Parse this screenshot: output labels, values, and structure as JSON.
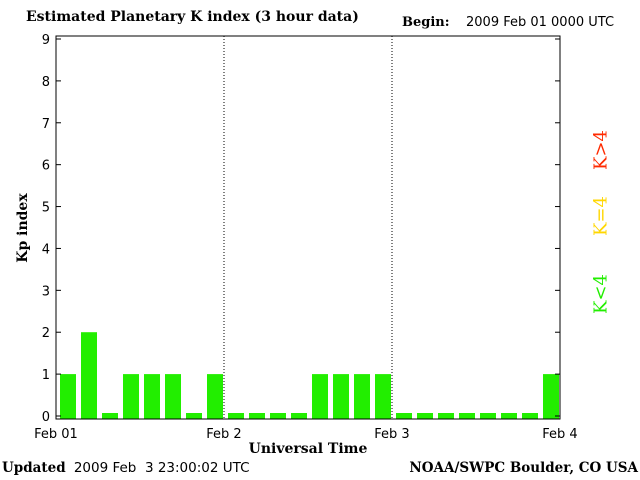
{
  "header": {
    "title": "Estimated Planetary K index (3 hour data)",
    "begin_label": "Begin:",
    "begin_value": "2009 Feb 01 0000 UTC"
  },
  "footer": {
    "updated_label": "Updated",
    "updated_value": "2009 Feb  3 23:00:02 UTC",
    "source": "NOAA/SWPC Boulder, CO USA"
  },
  "legend": [
    {
      "label": "K>4",
      "color": "#ff2a00"
    },
    {
      "label": "K=4",
      "color": "#ffd700"
    },
    {
      "label": "K<4",
      "color": "#22ee00"
    }
  ],
  "chart_data": {
    "type": "bar",
    "title": "Estimated Planetary K index (3 hour data)",
    "xlabel": "Universal Time",
    "ylabel": "Kp index",
    "ylim": [
      0,
      9
    ],
    "yticks": [
      0,
      1,
      2,
      3,
      4,
      5,
      6,
      7,
      8,
      9
    ],
    "x_tick_labels": [
      "Feb 01",
      "Feb 2",
      "Feb 3",
      "Feb 4"
    ],
    "day_separators": "dotted",
    "bar_color": "#22ee00",
    "series": [
      {
        "values": [
          1,
          2,
          0,
          1,
          1,
          1,
          0,
          1,
          0,
          0,
          0,
          0,
          1,
          1,
          1,
          1,
          0,
          0,
          0,
          0,
          0,
          0,
          0,
          1
        ]
      }
    ]
  }
}
